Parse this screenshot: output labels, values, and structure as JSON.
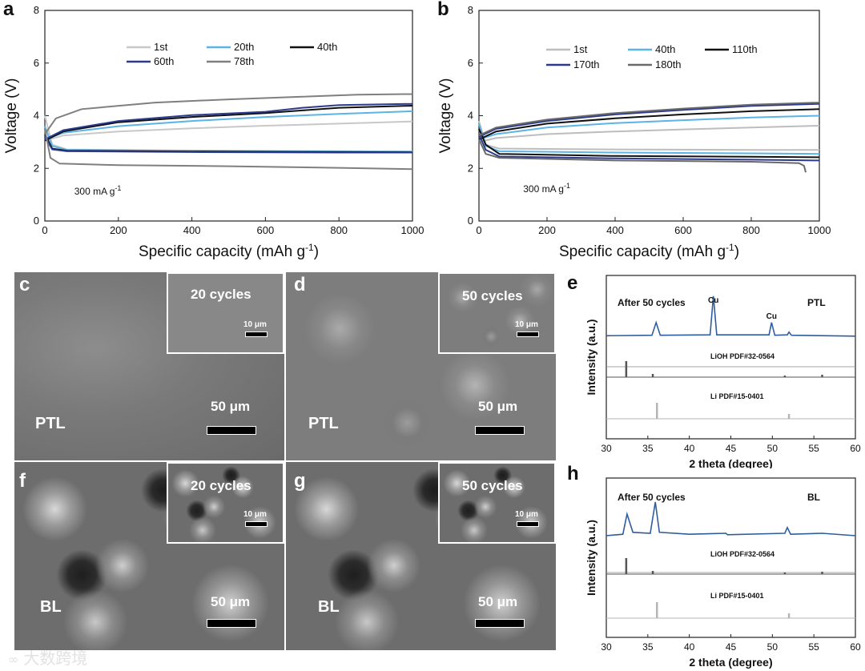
{
  "panels": {
    "a": {
      "label": "a",
      "chart_data": {
        "type": "line",
        "xlabel": "Specific capacity (mAh g",
        "xlabel_sup": "-1",
        "xlabel_end": ")",
        "ylabel": "Voltage (V)",
        "xlim": [
          0,
          1000
        ],
        "ylim": [
          0,
          8
        ],
        "xticks": [
          "0",
          "200",
          "400",
          "600",
          "800",
          "1000"
        ],
        "yticks": [
          "0",
          "2",
          "4",
          "6",
          "8"
        ],
        "annotation": "300 mA g",
        "annotation_sup": "-1",
        "legend": [
          "1st",
          "20th",
          "40th",
          "60th",
          "78th"
        ],
        "series": [
          {
            "name": "1st",
            "color": "#c8c8c8",
            "charge": [
              [
                0,
                3.05
              ],
              [
                50,
                3.25
              ],
              [
                200,
                3.4
              ],
              [
                400,
                3.52
              ],
              [
                600,
                3.62
              ],
              [
                800,
                3.7
              ],
              [
                1000,
                3.78
              ]
            ],
            "discharge": [
              [
                0,
                4.0
              ],
              [
                20,
                2.9
              ],
              [
                60,
                2.72
              ],
              [
                400,
                2.68
              ],
              [
                800,
                2.66
              ],
              [
                1000,
                2.65
              ]
            ]
          },
          {
            "name": "20th",
            "color": "#5ab4e6",
            "charge": [
              [
                0,
                3.1
              ],
              [
                50,
                3.35
              ],
              [
                200,
                3.6
              ],
              [
                400,
                3.8
              ],
              [
                600,
                3.95
              ],
              [
                800,
                4.07
              ],
              [
                1000,
                4.17
              ]
            ],
            "discharge": [
              [
                0,
                3.6
              ],
              [
                20,
                2.85
              ],
              [
                60,
                2.7
              ],
              [
                400,
                2.66
              ],
              [
                800,
                2.64
              ],
              [
                1000,
                2.63
              ]
            ]
          },
          {
            "name": "40th",
            "color": "#111111",
            "charge": [
              [
                0,
                3.05
              ],
              [
                50,
                3.4
              ],
              [
                200,
                3.75
              ],
              [
                400,
                3.95
              ],
              [
                600,
                4.1
              ],
              [
                700,
                4.2
              ],
              [
                800,
                4.3
              ],
              [
                1000,
                4.38
              ]
            ],
            "discharge": [
              [
                0,
                3.3
              ],
              [
                20,
                2.75
              ],
              [
                60,
                2.67
              ],
              [
                400,
                2.64
              ],
              [
                800,
                2.62
              ],
              [
                1000,
                2.61
              ]
            ]
          },
          {
            "name": "60th",
            "color": "#2c3a8c",
            "charge": [
              [
                0,
                3.1
              ],
              [
                50,
                3.45
              ],
              [
                200,
                3.8
              ],
              [
                400,
                4.02
              ],
              [
                600,
                4.15
              ],
              [
                700,
                4.3
              ],
              [
                800,
                4.4
              ],
              [
                1000,
                4.45
              ]
            ],
            "discharge": [
              [
                0,
                3.2
              ],
              [
                20,
                2.72
              ],
              [
                60,
                2.65
              ],
              [
                400,
                2.62
              ],
              [
                800,
                2.6
              ],
              [
                1000,
                2.6
              ]
            ]
          },
          {
            "name": "78th",
            "color": "#7f7f7f",
            "charge": [
              [
                0,
                3.3
              ],
              [
                30,
                3.9
              ],
              [
                100,
                4.25
              ],
              [
                300,
                4.5
              ],
              [
                500,
                4.62
              ],
              [
                700,
                4.72
              ],
              [
                850,
                4.8
              ],
              [
                1000,
                4.82
              ]
            ],
            "discharge": [
              [
                0,
                3.5
              ],
              [
                15,
                2.4
              ],
              [
                40,
                2.18
              ],
              [
                200,
                2.12
              ],
              [
                500,
                2.08
              ],
              [
                800,
                2.02
              ],
              [
                1000,
                1.97
              ]
            ]
          }
        ]
      }
    },
    "b": {
      "label": "b",
      "chart_data": {
        "type": "line",
        "xlabel": "Specific capacity (mAh g",
        "xlabel_sup": "-1",
        "xlabel_end": ")",
        "ylabel": "Voltage (V)",
        "xlim": [
          0,
          1000
        ],
        "ylim": [
          0,
          8
        ],
        "xticks": [
          "0",
          "200",
          "400",
          "600",
          "800",
          "1000"
        ],
        "yticks": [
          "0",
          "2",
          "4",
          "6",
          "8"
        ],
        "annotation": "300 mA g",
        "annotation_sup": "-1",
        "legend": [
          "1st",
          "40th",
          "110th",
          "170th",
          "180th"
        ],
        "series": [
          {
            "name": "1st",
            "color": "#bdbdbd",
            "charge": [
              [
                0,
                3.0
              ],
              [
                50,
                3.15
              ],
              [
                200,
                3.3
              ],
              [
                400,
                3.4
              ],
              [
                600,
                3.48
              ],
              [
                800,
                3.55
              ],
              [
                1000,
                3.62
              ]
            ],
            "discharge": [
              [
                0,
                3.8
              ],
              [
                20,
                2.9
              ],
              [
                60,
                2.75
              ],
              [
                400,
                2.72
              ],
              [
                800,
                2.7
              ],
              [
                1000,
                2.7
              ]
            ]
          },
          {
            "name": "40th",
            "color": "#5ab4e6",
            "charge": [
              [
                0,
                3.1
              ],
              [
                50,
                3.3
              ],
              [
                200,
                3.55
              ],
              [
                400,
                3.72
              ],
              [
                600,
                3.83
              ],
              [
                800,
                3.93
              ],
              [
                1000,
                4.0
              ]
            ],
            "discharge": [
              [
                0,
                3.7
              ],
              [
                20,
                2.85
              ],
              [
                60,
                2.65
              ],
              [
                400,
                2.6
              ],
              [
                800,
                2.57
              ],
              [
                1000,
                2.55
              ]
            ]
          },
          {
            "name": "110th",
            "color": "#111111",
            "charge": [
              [
                0,
                3.1
              ],
              [
                50,
                3.4
              ],
              [
                200,
                3.7
              ],
              [
                400,
                3.9
              ],
              [
                600,
                4.05
              ],
              [
                800,
                4.17
              ],
              [
                1000,
                4.25
              ]
            ],
            "discharge": [
              [
                0,
                3.5
              ],
              [
                20,
                2.9
              ],
              [
                60,
                2.55
              ],
              [
                400,
                2.47
              ],
              [
                800,
                2.44
              ],
              [
                1000,
                2.42
              ]
            ]
          },
          {
            "name": "170th",
            "color": "#2c3a8c",
            "charge": [
              [
                0,
                3.2
              ],
              [
                50,
                3.5
              ],
              [
                200,
                3.8
              ],
              [
                400,
                4.05
              ],
              [
                600,
                4.22
              ],
              [
                800,
                4.37
              ],
              [
                1000,
                4.45
              ]
            ],
            "discharge": [
              [
                0,
                3.3
              ],
              [
                20,
                2.7
              ],
              [
                60,
                2.45
              ],
              [
                400,
                2.38
              ],
              [
                800,
                2.33
              ],
              [
                1000,
                2.3
              ]
            ]
          },
          {
            "name": "180th",
            "color": "#6a6a6a",
            "charge": [
              [
                0,
                3.25
              ],
              [
                50,
                3.55
              ],
              [
                200,
                3.85
              ],
              [
                400,
                4.1
              ],
              [
                600,
                4.27
              ],
              [
                800,
                4.42
              ],
              [
                1000,
                4.5
              ]
            ],
            "discharge": [
              [
                0,
                3.1
              ],
              [
                20,
                2.55
              ],
              [
                60,
                2.4
              ],
              [
                400,
                2.3
              ],
              [
                800,
                2.25
              ],
              [
                940,
                2.2
              ],
              [
                955,
                2.1
              ],
              [
                960,
                1.85
              ]
            ]
          }
        ]
      }
    },
    "c": {
      "label": "c",
      "inset_title": "20 cycles",
      "inset_scale": "10 μm",
      "main_label": "PTL",
      "main_scale": "50 μm"
    },
    "d": {
      "label": "d",
      "inset_title": "50 cycles",
      "inset_scale": "10 μm",
      "main_label": "PTL",
      "main_scale": "50 μm"
    },
    "f": {
      "label": "f",
      "inset_title": "20 cycles",
      "inset_scale": "10 μm",
      "main_label": "BL",
      "main_scale": "50 μm"
    },
    "g": {
      "label": "g",
      "inset_title": "50 cycles",
      "inset_scale": "10 μm",
      "main_label": "BL",
      "main_scale": "50 μm"
    },
    "e": {
      "label": "e",
      "chart_data": {
        "type": "line",
        "xlabel": "2 theta (degree)",
        "ylabel": "Intensity (a.u.)",
        "xlim": [
          30,
          60
        ],
        "xticks": [
          "30",
          "35",
          "40",
          "45",
          "50",
          "55",
          "60"
        ],
        "title_left": "After 50 cycles",
        "title_right": "PTL",
        "peak_labels": [
          {
            "x": 42.9,
            "text": "Cu"
          },
          {
            "x": 49.9,
            "text": "Cu"
          }
        ],
        "pattern": [
          [
            30,
            0.05
          ],
          [
            35.5,
            0.06
          ],
          [
            36.0,
            0.35
          ],
          [
            36.5,
            0.06
          ],
          [
            42.5,
            0.07
          ],
          [
            42.9,
            0.95
          ],
          [
            43.3,
            0.07
          ],
          [
            49.6,
            0.07
          ],
          [
            49.9,
            0.35
          ],
          [
            50.3,
            0.06
          ],
          [
            51.8,
            0.07
          ],
          [
            52.0,
            0.13
          ],
          [
            52.3,
            0.06
          ],
          [
            60,
            0.04
          ]
        ],
        "references": [
          {
            "name": "LiOH PDF#32-0564",
            "color": "#555555",
            "lines": [
              [
                32.4,
                1.0
              ],
              [
                35.6,
                0.2
              ],
              [
                51.5,
                0.1
              ],
              [
                56.0,
                0.15
              ]
            ]
          },
          {
            "name": "Li PDF#15-0401",
            "color": "#b5b5b5",
            "lines": [
              [
                36.1,
                1.0
              ],
              [
                52.0,
                0.3
              ]
            ]
          }
        ]
      }
    },
    "h": {
      "label": "h",
      "chart_data": {
        "type": "line",
        "xlabel": "2 theta (degree)",
        "ylabel": "Intensity (a.u.)",
        "xlim": [
          30,
          60
        ],
        "xticks": [
          "30",
          "35",
          "40",
          "45",
          "50",
          "55",
          "60"
        ],
        "title_left": "After 50 cycles",
        "title_right": "BL",
        "pattern": [
          [
            30,
            0.05
          ],
          [
            32.0,
            0.08
          ],
          [
            32.5,
            0.5
          ],
          [
            33.2,
            0.12
          ],
          [
            35.3,
            0.1
          ],
          [
            35.9,
            0.75
          ],
          [
            36.4,
            0.12
          ],
          [
            40,
            0.08
          ],
          [
            44.4,
            0.1
          ],
          [
            44.6,
            0.07
          ],
          [
            51.5,
            0.1
          ],
          [
            51.8,
            0.22
          ],
          [
            52.2,
            0.08
          ],
          [
            56,
            0.1
          ],
          [
            60,
            0.05
          ]
        ],
        "references": [
          {
            "name": "LiOH PDF#32-0564",
            "color": "#555555",
            "lines": [
              [
                32.4,
                1.0
              ],
              [
                35.6,
                0.2
              ],
              [
                51.5,
                0.1
              ],
              [
                56.0,
                0.15
              ]
            ]
          },
          {
            "name": "Li PDF#15-0401",
            "color": "#b5b5b5",
            "lines": [
              [
                36.1,
                1.0
              ],
              [
                52.0,
                0.3
              ]
            ]
          }
        ]
      }
    }
  },
  "watermark": "大数跨境"
}
